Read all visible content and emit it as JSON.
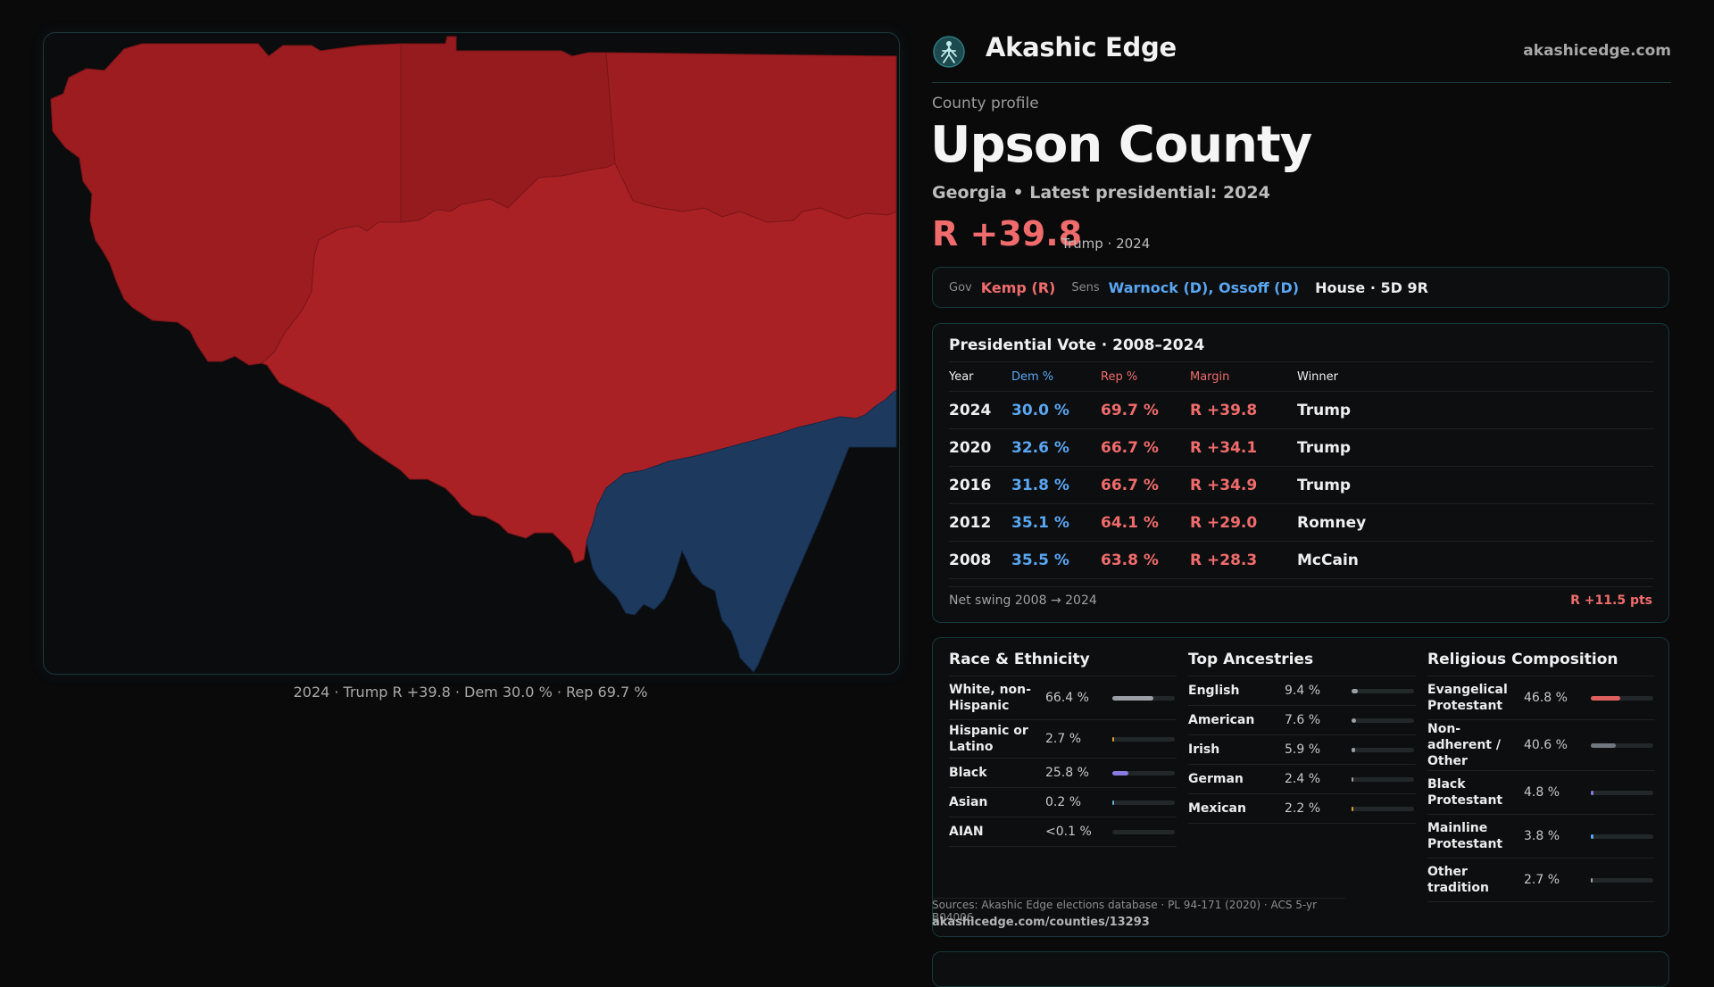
{
  "brand": {
    "name": "Akashic Edge",
    "site": "akashicedge.com"
  },
  "profile": {
    "eyebrow": "County profile",
    "county": "Upson County",
    "subtitle": "Georgia • Latest presidential: 2024",
    "margin": "R +39.8",
    "margin_note": "Trump · 2024"
  },
  "officials": {
    "gov_label": "Gov",
    "gov": "Kemp (R)",
    "sens_label": "Sens",
    "sens": "Warnock (D), Ossoff (D)",
    "house": "House · 5D 9R"
  },
  "map": {
    "caption": "2024 · Trump R +39.8 · Dem 30.0 % · Rep 69.7 %",
    "rep_color": "#a31f23",
    "dem_color": "#1c3a5e"
  },
  "vote_history": {
    "title": "Presidential Vote · 2008–2024",
    "columns": [
      "Year",
      "Dem %",
      "Rep %",
      "Margin",
      "Winner"
    ],
    "rows": [
      [
        "2024",
        "30.0 %",
        "69.7 %",
        "R +39.8",
        "Trump"
      ],
      [
        "2020",
        "32.6 %",
        "66.7 %",
        "R +34.1",
        "Trump"
      ],
      [
        "2016",
        "31.8 %",
        "66.7 %",
        "R +34.9",
        "Trump"
      ],
      [
        "2012",
        "35.1 %",
        "64.1 %",
        "R +29.0",
        "Romney"
      ],
      [
        "2008",
        "35.5 %",
        "63.8 %",
        "R +28.3",
        "McCain"
      ]
    ],
    "swing_label": "Net swing 2008 → 2024",
    "swing_value": "R +11.5 pts"
  },
  "race": {
    "title": "Race & Ethnicity",
    "items": [
      {
        "label": "White, non-Hispanic",
        "value": "66.4 %",
        "fraction": 0.664,
        "color": "#9aa0a6"
      },
      {
        "label": "Hispanic or Latino",
        "value": "2.7 %",
        "fraction": 0.027,
        "color": "#e0a030"
      },
      {
        "label": "Black",
        "value": "25.8 %",
        "fraction": 0.258,
        "color": "#8a7be0"
      },
      {
        "label": "Asian",
        "value": "0.2 %",
        "fraction": 0.002,
        "color": "#5fb0d0"
      },
      {
        "label": "AIAN",
        "value": "<0.1 %",
        "fraction": 0.0,
        "color": "#5fb0d0"
      }
    ]
  },
  "ancestry": {
    "title": "Top Ancestries",
    "items": [
      {
        "label": "English",
        "value": "9.4 %",
        "fraction": 0.094,
        "color": "#9aa0a6"
      },
      {
        "label": "American",
        "value": "7.6 %",
        "fraction": 0.076,
        "color": "#9aa0a6"
      },
      {
        "label": "Irish",
        "value": "5.9 %",
        "fraction": 0.059,
        "color": "#9aa0a6"
      },
      {
        "label": "German",
        "value": "2.4 %",
        "fraction": 0.024,
        "color": "#9aa0a6"
      },
      {
        "label": "Mexican",
        "value": "2.2 %",
        "fraction": 0.022,
        "color": "#e0a030"
      }
    ]
  },
  "religion": {
    "title": "Religious Composition",
    "items": [
      {
        "label": "Evangelical Protestant",
        "value": "46.8 %",
        "fraction": 0.468,
        "color": "#e06060"
      },
      {
        "label": "Non-adherent / Other",
        "value": "40.6 %",
        "fraction": 0.406,
        "color": "#707780"
      },
      {
        "label": "Black Protestant",
        "value": "4.8 %",
        "fraction": 0.048,
        "color": "#8a7be0"
      },
      {
        "label": "Mainline Protestant",
        "value": "3.8 %",
        "fraction": 0.038,
        "color": "#5aa6f2"
      },
      {
        "label": "Other tradition",
        "value": "2.7 %",
        "fraction": 0.027,
        "color": "#9aa0a6"
      }
    ]
  },
  "sources": {
    "text": "Sources: Akashic Edge elections database · PL 94-171 (2020) · ACS 5-yr B04006",
    "url": "akashicedge.com/counties/13293"
  }
}
